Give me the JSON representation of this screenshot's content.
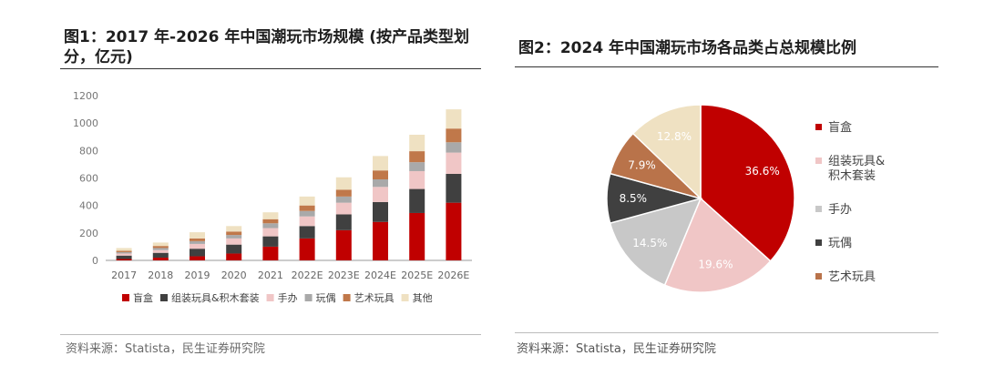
{
  "chart_data": [
    {
      "type": "bar",
      "stacked": true,
      "title": "图1：2017 年-2026 年中国潮玩市场规模 (按产品类型划分，亿元)",
      "categories": [
        "2017",
        "2018",
        "2019",
        "2020",
        "2021",
        "2022E",
        "2023E",
        "2024E",
        "2025E",
        "2026E"
      ],
      "yticks": [
        "0",
        "200",
        "400",
        "600",
        "800",
        "1000",
        "1200"
      ],
      "ylim": [
        0,
        1200
      ],
      "series": [
        {
          "name": "盲盒",
          "color": "#c00000",
          "values": [
            10,
            20,
            30,
            50,
            100,
            160,
            220,
            280,
            345,
            420
          ]
        },
        {
          "name": "组装玩具&积木套装",
          "color": "#404040",
          "values": [
            25,
            35,
            55,
            65,
            75,
            90,
            115,
            145,
            175,
            210
          ]
        },
        {
          "name": "手办",
          "color": "#f0c6c6",
          "values": [
            15,
            20,
            35,
            45,
            60,
            70,
            85,
            110,
            130,
            155
          ]
        },
        {
          "name": "玩偶",
          "color": "#a9a9a9",
          "values": [
            10,
            15,
            20,
            25,
            35,
            40,
            45,
            55,
            65,
            75
          ]
        },
        {
          "name": "艺术玩具",
          "color": "#c0784a",
          "values": [
            10,
            15,
            20,
            25,
            30,
            40,
            50,
            65,
            80,
            100
          ]
        },
        {
          "name": "其他",
          "color": "#efe1c2",
          "values": [
            20,
            25,
            45,
            40,
            50,
            65,
            90,
            105,
            120,
            140
          ]
        }
      ],
      "legend_position": "bottom",
      "source": "资料来源：Statista，民生证券研究院"
    },
    {
      "type": "pie",
      "title": "图2：2024 年中国潮玩市场各品类占总规模比例",
      "slices": [
        {
          "name": "盲盒",
          "value": 36.6,
          "label": "36.6%",
          "color": "#c00000"
        },
        {
          "name": "组装玩具&积木套装",
          "value": 19.6,
          "label": "19.6%",
          "color": "#f0c6c6"
        },
        {
          "name": "手办",
          "value": 14.5,
          "label": "14.5%",
          "color": "#c8c8c8"
        },
        {
          "name": "玩偶",
          "value": 8.5,
          "label": "8.5%",
          "color": "#404040"
        },
        {
          "name": "艺术玩具",
          "value": 7.9,
          "label": "7.9%",
          "color": "#b9734a"
        },
        {
          "name": "其他",
          "value": 12.8,
          "label": "12.8%",
          "color": "#efe1c2"
        }
      ],
      "legend": [
        {
          "name": "盲盒",
          "lines": [
            "盲盒"
          ],
          "color": "#c00000"
        },
        {
          "name": "组装玩具&积木套装",
          "lines": [
            "组装玩具&",
            "积木套装"
          ],
          "color": "#f0c6c6"
        },
        {
          "name": "手办",
          "lines": [
            "手办"
          ],
          "color": "#c8c8c8"
        },
        {
          "name": "玩偶",
          "lines": [
            "玩偶"
          ],
          "color": "#404040"
        },
        {
          "name": "艺术玩具",
          "lines": [
            "艺术玩具"
          ],
          "color": "#b9734a"
        }
      ],
      "legend_position": "right",
      "source": "资料来源：Statista，民生证券研究院"
    }
  ]
}
